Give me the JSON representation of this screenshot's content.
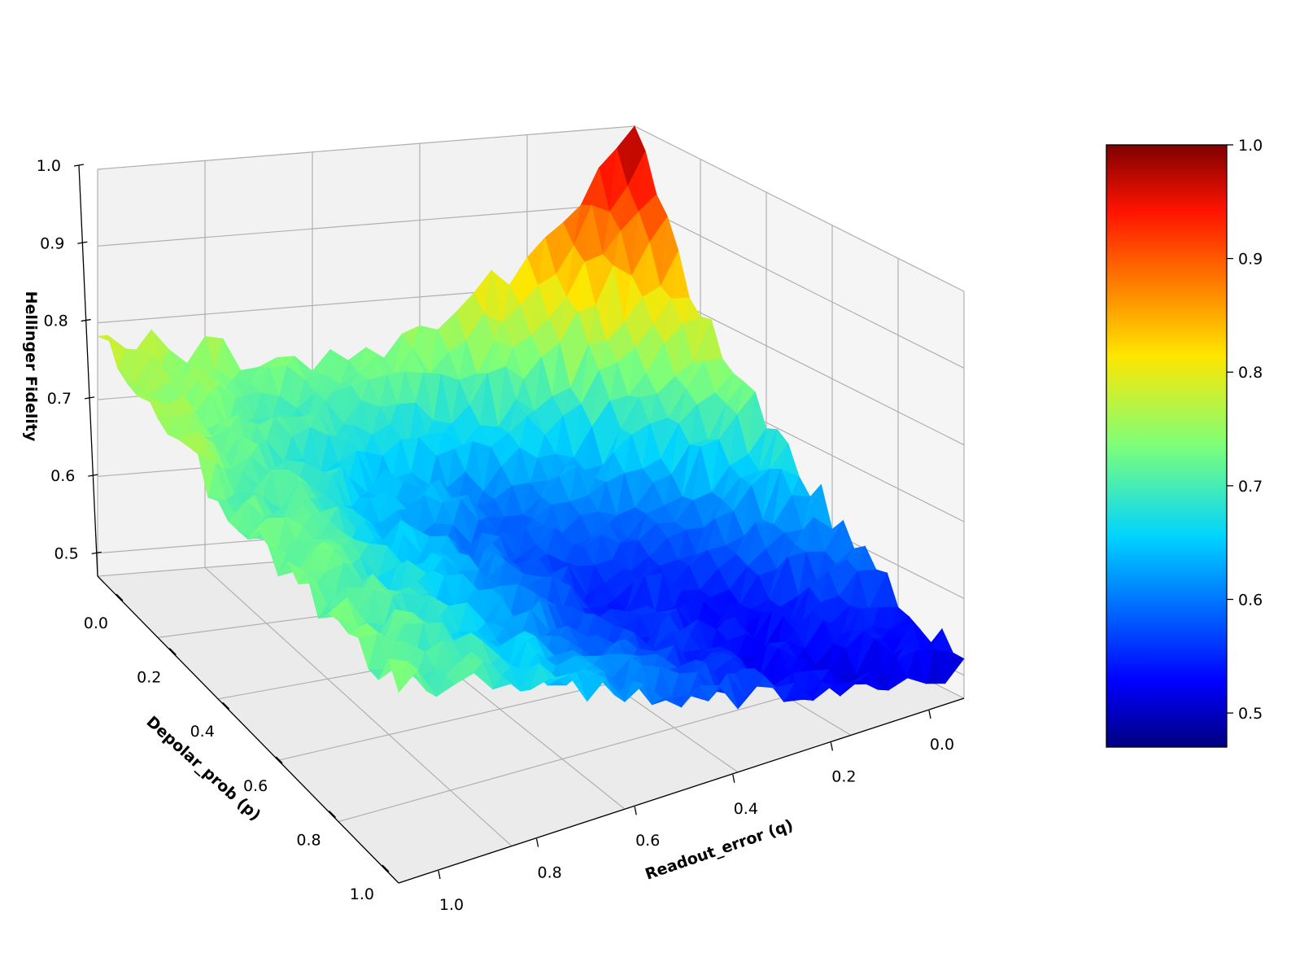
{
  "chart_data": {
    "type": "surface",
    "title": "",
    "zlabel": "Hellinger Fidelity",
    "xlabel": "Readout_error (q)",
    "ylabel": "Depolar_prob (p)",
    "x_range": [
      0.0,
      1.0
    ],
    "y_range": [
      0.0,
      1.0
    ],
    "zlim": [
      0.47,
      1.0
    ],
    "colormap": "jet",
    "colorbar": {
      "min": 0.47,
      "max": 1.0,
      "ticks": [
        "0.5",
        "0.6",
        "0.7",
        "0.8",
        "0.9",
        "1.0"
      ]
    },
    "x_ticks": [
      "0.0",
      "0.2",
      "0.4",
      "0.6",
      "0.8",
      "1.0"
    ],
    "y_ticks": [
      "0.0",
      "0.2",
      "0.4",
      "0.6",
      "0.8",
      "1.0"
    ],
    "z_ticks": [
      "0.5",
      "0.6",
      "0.7",
      "0.8",
      "0.9",
      "1.0"
    ],
    "grid_x": [
      0.0,
      0.2,
      0.4,
      0.6,
      0.8,
      1.0
    ],
    "grid_y": [
      0.0,
      0.2,
      0.4,
      0.6,
      0.8,
      1.0
    ],
    "z_values": [
      [
        1.0,
        0.84,
        0.75,
        0.73,
        0.75,
        0.78
      ],
      [
        0.8,
        0.66,
        0.62,
        0.65,
        0.7,
        0.76
      ],
      [
        0.7,
        0.58,
        0.57,
        0.62,
        0.69,
        0.73
      ],
      [
        0.62,
        0.54,
        0.55,
        0.62,
        0.68,
        0.73
      ],
      [
        0.56,
        0.52,
        0.56,
        0.61,
        0.68,
        0.73
      ],
      [
        0.51,
        0.53,
        0.57,
        0.62,
        0.68,
        0.73
      ]
    ],
    "grid": true
  }
}
